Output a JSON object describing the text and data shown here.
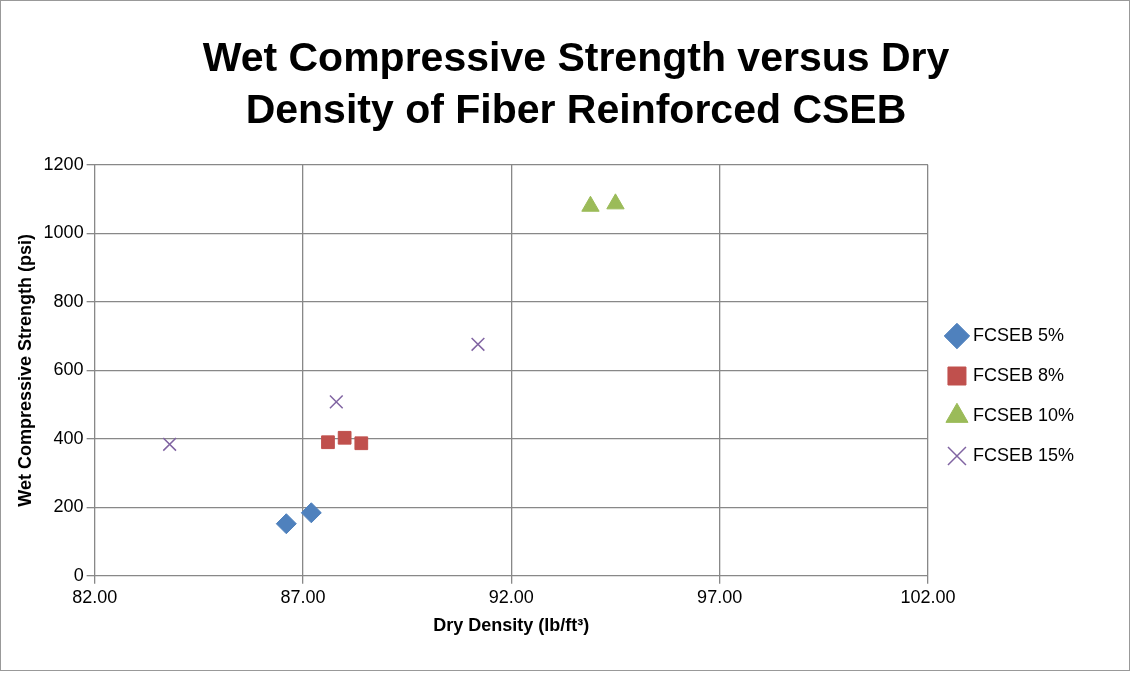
{
  "chart_data": {
    "type": "scatter",
    "title": "Wet Compressive Strength versus Dry Density of Fiber Reinforced CSEB",
    "xlabel": "Dry Density (lb/ft³)",
    "ylabel": "Wet Compressive Strength (psi)",
    "xlim": [
      82,
      102
    ],
    "xticks": [
      {
        "value": 82,
        "label": "82.00"
      },
      {
        "value": 87,
        "label": "87.00"
      },
      {
        "value": 92,
        "label": "92.00"
      },
      {
        "value": 97,
        "label": "97.00"
      },
      {
        "value": 102,
        "label": "102.00"
      }
    ],
    "ylim": [
      0,
      1200
    ],
    "yticks": [
      0,
      200,
      400,
      600,
      800,
      1000,
      1200
    ],
    "grid": true,
    "legend": "right",
    "series": [
      {
        "name": "FCSEB 5%",
        "color": "#4f81bd",
        "marker": "diamond",
        "x": [
          86.6,
          87.2
        ],
        "values": [
          152,
          184
        ]
      },
      {
        "name": "FCSEB 8%",
        "color": "#c0504d",
        "marker": "square",
        "x": [
          87.6,
          88.0,
          88.4
        ],
        "values": [
          390,
          403,
          387
        ]
      },
      {
        "name": "FCSEB 10%",
        "color": "#9bbb59",
        "marker": "triangle",
        "x": [
          93.9,
          94.5
        ],
        "values": [
          1079,
          1086
        ]
      },
      {
        "name": "FCSEB 15%",
        "color": "#8064a2",
        "marker": "cross",
        "x": [
          83.8,
          87.8,
          91.2
        ],
        "values": [
          384,
          508,
          676
        ]
      }
    ]
  }
}
